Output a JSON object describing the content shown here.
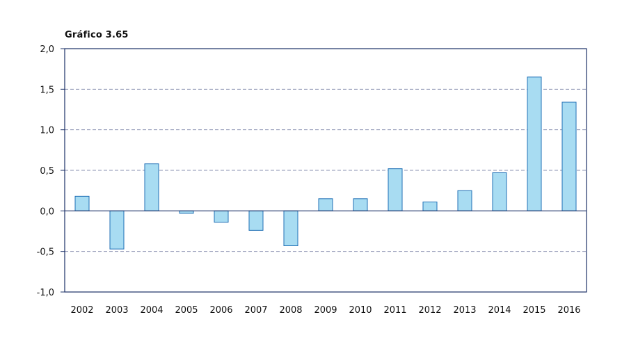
{
  "chart_data": {
    "type": "bar",
    "title": "Gráfico 3.65",
    "categories": [
      "2002",
      "2003",
      "2004",
      "2005",
      "2006",
      "2007",
      "2008",
      "2009",
      "2010",
      "2011",
      "2012",
      "2013",
      "2014",
      "2015",
      "2016"
    ],
    "values": [
      0.18,
      -0.47,
      0.58,
      -0.03,
      -0.14,
      -0.24,
      -0.43,
      0.15,
      0.15,
      0.52,
      0.11,
      0.25,
      0.47,
      1.65,
      1.34
    ],
    "ylim": [
      -1.0,
      2.0
    ],
    "yticks": [
      -1.0,
      -0.5,
      0.0,
      0.5,
      1.0,
      1.5,
      2.0
    ],
    "ytick_labels": [
      "-1,0",
      "-0,5",
      "0,0",
      "0,5",
      "1,0",
      "1,5",
      "2,0"
    ],
    "grid": true,
    "bar_fill": "#a8dcf2",
    "bar_stroke": "#1f6fb5",
    "grid_color": "#8a90b0",
    "axis_color": "#1a2f66"
  }
}
